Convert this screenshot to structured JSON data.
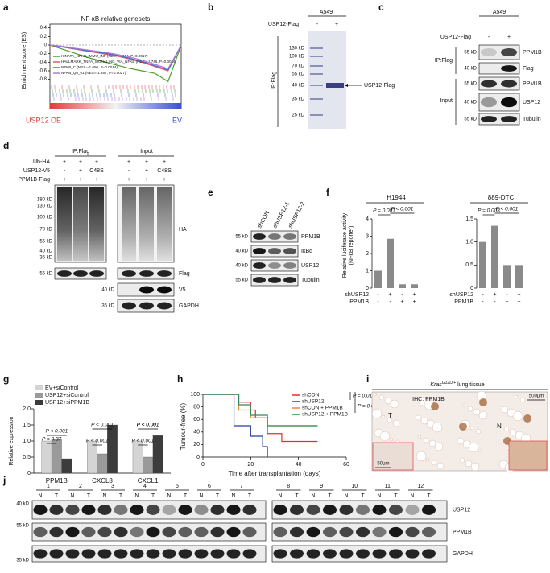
{
  "panel_labels": [
    "a",
    "b",
    "c",
    "d",
    "e",
    "f",
    "g",
    "h",
    "i",
    "j"
  ],
  "b": {
    "title": "A549",
    "treatment": "USP12-Flag",
    "signs": [
      "-",
      "+"
    ],
    "markers": [
      "130 kD",
      "100 kD",
      "70 kD",
      "55 kD",
      "40 kD",
      "35 kD",
      "25 kD"
    ],
    "side": "IP:Flag",
    "arrow": "USP12-Flag"
  },
  "c": {
    "title": "A549",
    "treatment": "USP12-Flag",
    "signs": [
      "-",
      "+"
    ],
    "groups": [
      "IP:Flag",
      "Input"
    ],
    "rows": [
      {
        "marker": "55 kD",
        "label": "PPM1B"
      },
      {
        "marker": "40 kD",
        "label": "Flag"
      },
      {
        "marker": "55 kD",
        "label": "PPM1B"
      },
      {
        "marker": "40 kD",
        "label": "USP12"
      },
      {
        "marker": "55 kD",
        "label": "Tubulin"
      }
    ]
  },
  "d": {
    "groups": [
      "IP:Flag",
      "Input"
    ],
    "conditions": [
      {
        "name": "Ub-HA",
        "signs": [
          "+",
          "+",
          "+",
          "+",
          "+",
          "+"
        ]
      },
      {
        "name": "USP12-V5",
        "signs": [
          "-",
          "+",
          "C48S",
          "-",
          "+",
          "C48S"
        ]
      },
      {
        "name": "PPM1B-Flag",
        "signs": [
          "+",
          "+",
          "+",
          "+",
          "+",
          "+"
        ]
      }
    ],
    "markers": [
      "180 kD",
      "130 kD",
      "100 kD",
      "70 kD",
      "55 kD",
      "40 kD",
      "35 kD"
    ],
    "rows": [
      {
        "label": "HA"
      },
      {
        "marker": "55 kD",
        "label": "Flag"
      },
      {
        "marker": "40 kD",
        "label": "V5"
      },
      {
        "marker": "35 kD",
        "label": "GAPDH"
      }
    ]
  },
  "e": {
    "lanes": [
      "shCON",
      "shUSP12-1",
      "shUSP12-2"
    ],
    "rows": [
      {
        "marker": "55 kD",
        "label": "PPM1B"
      },
      {
        "marker": "40 kD",
        "label": "IκBα"
      },
      {
        "marker": "40 kD",
        "label": "USP12"
      },
      {
        "marker": "55 kD",
        "label": "Tubulin"
      }
    ]
  },
  "i": {
    "title_parts": [
      "Kras",
      "G12D/+",
      " lung tissue"
    ],
    "subtitle": "IHC: PPM1B",
    "scale_large": "500μm",
    "scale_small": "50μm",
    "region_labels": [
      "T",
      "N"
    ]
  },
  "j": {
    "samples": [
      "1",
      "2",
      "3",
      "4",
      "5",
      "6",
      "7",
      "8",
      "9",
      "10",
      "11",
      "12"
    ],
    "lane_labels": [
      "N",
      "T"
    ],
    "rows": [
      {
        "marker": "40 kD",
        "label": "USP12"
      },
      {
        "marker": "55 kD",
        "label": "PPM1B"
      },
      {
        "marker": "35 kD",
        "label": "GAPDH"
      }
    ]
  },
  "chart_data": [
    {
      "type": "line",
      "title": "NF-κB-relative genesets",
      "y_label": "Enrichment score (ES)",
      "left_label": "USP12 OE",
      "right_label": "EV",
      "x": [
        0,
        1,
        2,
        3,
        4,
        5,
        6,
        7,
        8,
        9,
        10
      ],
      "xlim": [
        0,
        10
      ],
      "ylim": [
        -0.9,
        0.45
      ],
      "yticks": [
        0.4,
        0.2,
        0,
        -0.2,
        -0.4,
        -0.6,
        -0.8
      ],
      "series": [
        {
          "name": "HINATA_NFKB_IMMU_INF (NES=-1.954, P=0.0017)",
          "color": "#4aa02c",
          "values": [
            0,
            -0.1,
            -0.2,
            -0.3,
            -0.38,
            -0.46,
            -0.54,
            -0.6,
            -0.66,
            -0.85,
            0
          ]
        },
        {
          "name": "HALLMARK_TNFA_SIGNALING_VIA_NFKB (NES=-1.746, P=0.0014)",
          "color": "#e8556a",
          "values": [
            0,
            -0.05,
            -0.1,
            -0.15,
            -0.2,
            -0.25,
            -0.32,
            -0.4,
            -0.5,
            -0.6,
            0
          ]
        },
        {
          "name": "NFKB_C (NES=-1.650, P=0.0014)",
          "color": "#3b6fd1",
          "values": [
            0,
            -0.04,
            -0.09,
            -0.14,
            -0.18,
            -0.23,
            -0.3,
            -0.38,
            -0.48,
            -0.58,
            0
          ]
        },
        {
          "name": "NFKB_Q6_01 (NES=-1.557, P=0.0027)",
          "color": "#b07ad8",
          "values": [
            0,
            -0.03,
            -0.08,
            -0.12,
            -0.16,
            -0.21,
            -0.27,
            -0.35,
            -0.45,
            -0.55,
            0
          ]
        }
      ]
    },
    {
      "type": "bar",
      "title": "H1944",
      "y_label": [
        "Relative luciferase activity",
        "(NFκB reporter)"
      ],
      "values": [
        1.0,
        2.85,
        0.22,
        0.22
      ],
      "color": "#8a8a8a",
      "ylim": [
        0,
        4
      ],
      "yticks": [
        0,
        1,
        2,
        3,
        4
      ],
      "conditions": [
        {
          "name": "shUSP12",
          "signs": [
            "-",
            "+",
            "-",
            "+"
          ]
        },
        {
          "name": "PPM1B",
          "signs": [
            "-",
            "-",
            "+",
            "+"
          ]
        }
      ],
      "annotations": [
        "P = 0.001",
        "P < 0.001"
      ]
    },
    {
      "type": "bar",
      "title": "889-DTC",
      "values": [
        1.0,
        1.35,
        0.5,
        0.5
      ],
      "color": "#8a8a8a",
      "ylim": [
        0,
        1.5
      ],
      "yticks": [
        0,
        0.5,
        {
          "value": 1,
          "label": "1.0"
        },
        1.5
      ],
      "conditions": [
        {
          "name": "shUSP12",
          "signs": [
            "-",
            "+",
            "-",
            "+"
          ]
        },
        {
          "name": "PPM1B",
          "signs": [
            "-",
            "-",
            "+",
            "+"
          ]
        }
      ],
      "annotations": [
        "P = 0.003",
        "P < 0.001"
      ]
    },
    {
      "type": "grouped_bar",
      "y_label": "Relative expression",
      "categories": [
        "PPM1B",
        "CXCL8",
        "CXCL1"
      ],
      "series": [
        {
          "name": "EV+siControl",
          "color": "#d4d4d4",
          "values": [
            1.0,
            1.0,
            1.0
          ]
        },
        {
          "name": "USP12+siControl",
          "color": "#9a9a9a",
          "values": [
            1.05,
            0.6,
            0.5
          ]
        },
        {
          "name": "USP12+siPPM1B",
          "color": "#3c3c3c",
          "values": [
            0.45,
            1.5,
            1.17
          ]
        }
      ],
      "ylim": [
        0,
        2
      ],
      "yticks": [
        0,
        0.5,
        {
          "value": 1,
          "label": "1.0"
        },
        1.5,
        {
          "value": 2,
          "label": "2.0"
        }
      ],
      "annotations": [
        "P = 0.37",
        "P < 0.001",
        "P < 0.001",
        "P < 0.001",
        "P < 0.001",
        "P < 0.001",
        "P < 0.001"
      ]
    },
    {
      "type": "line",
      "step": true,
      "x_label": "Time after transplantation (days)",
      "y_label": "Tumour-free (%)",
      "xlim": [
        0,
        60
      ],
      "xticks": [
        0,
        20,
        40,
        60
      ],
      "ylim": [
        0,
        100
      ],
      "yticks": [
        0,
        20,
        40,
        60,
        80,
        100
      ],
      "series": [
        {
          "name": "shCON",
          "color": "#e03030",
          "x": [
            0,
            15,
            20,
            22,
            27,
            33,
            48
          ],
          "values": [
            100,
            87.5,
            75,
            62.5,
            37.5,
            25,
            25
          ]
        },
        {
          "name": "shUSP12",
          "color": "#2a3fa0",
          "x": [
            0,
            13,
            20,
            25,
            27
          ],
          "values": [
            100,
            50,
            33.3,
            16.7,
            0
          ]
        },
        {
          "name": "shCON + PPM1B",
          "color": "#e09030",
          "x": [
            0,
            15,
            20,
            27,
            48
          ],
          "values": [
            100,
            75,
            62.5,
            50,
            50
          ]
        },
        {
          "name": "shUSP12 + PPM1B",
          "color": "#2e8b57",
          "x": [
            0,
            15,
            20,
            27,
            48
          ],
          "values": [
            100,
            83.3,
            66.7,
            50,
            50
          ]
        }
      ],
      "annotations": [
        "P = 0.019",
        "P = 0.011"
      ]
    }
  ]
}
